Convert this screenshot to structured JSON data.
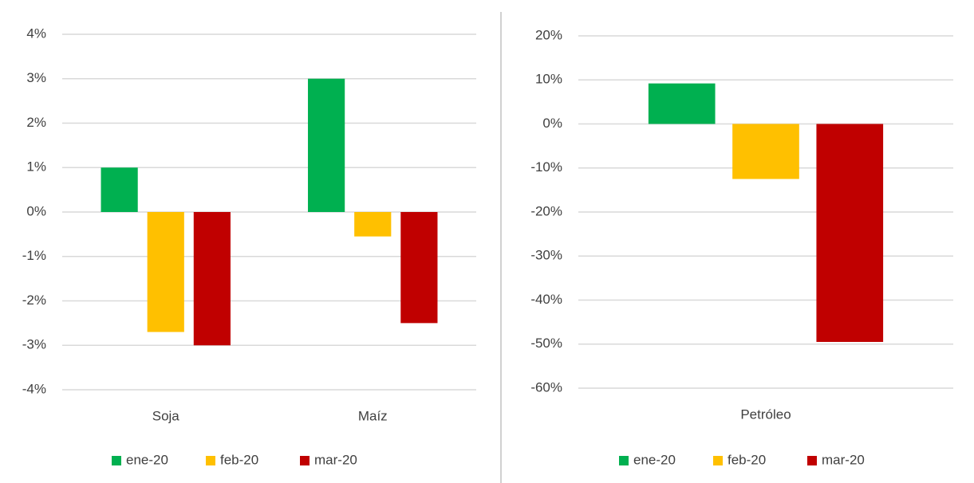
{
  "chart_data": [
    {
      "type": "bar",
      "categories": [
        "Soja",
        "Maíz"
      ],
      "series": [
        {
          "name": "ene-20",
          "color": "#00b050",
          "values": [
            1,
            3
          ]
        },
        {
          "name": "feb-20",
          "color": "#ffc000",
          "values": [
            -2.7,
            -0.55
          ]
        },
        {
          "name": "mar-20",
          "color": "#c00000",
          "values": [
            -3,
            -2.5
          ]
        }
      ],
      "ylim": [
        -4,
        4
      ],
      "yticks": [
        {
          "value": -4,
          "label": "-4%"
        },
        {
          "value": -3,
          "label": "-3%"
        },
        {
          "value": -2,
          "label": "-2%"
        },
        {
          "value": -1,
          "label": "-1%"
        },
        {
          "value": 0,
          "label": "0%"
        },
        {
          "value": 1,
          "label": "1%"
        },
        {
          "value": 2,
          "label": "2%"
        },
        {
          "value": 3,
          "label": "3%"
        },
        {
          "value": 4,
          "label": "4%"
        }
      ],
      "grid": true,
      "legend": "bottom"
    },
    {
      "type": "bar",
      "categories": [
        "Petróleo"
      ],
      "series": [
        {
          "name": "ene-20",
          "color": "#00b050",
          "values": [
            9.2
          ]
        },
        {
          "name": "feb-20",
          "color": "#ffc000",
          "values": [
            -12.5
          ]
        },
        {
          "name": "mar-20",
          "color": "#c00000",
          "values": [
            -49.5
          ]
        }
      ],
      "ylim": [
        -60,
        20
      ],
      "yticks": [
        {
          "value": -60,
          "label": "-60%"
        },
        {
          "value": -50,
          "label": "-50%"
        },
        {
          "value": -40,
          "label": "-40%"
        },
        {
          "value": -30,
          "label": "-30%"
        },
        {
          "value": -20,
          "label": "-20%"
        },
        {
          "value": -10,
          "label": "-10%"
        },
        {
          "value": 0,
          "label": "0%"
        },
        {
          "value": 10,
          "label": "10%"
        },
        {
          "value": 20,
          "label": "20%"
        }
      ],
      "grid": true,
      "legend": "bottom"
    }
  ]
}
